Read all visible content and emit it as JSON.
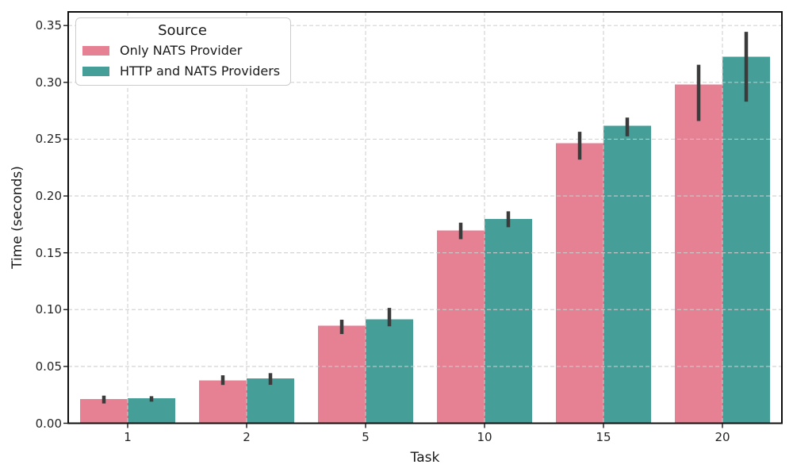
{
  "chart_data": {
    "type": "bar",
    "title": "",
    "xlabel": "Task",
    "ylabel": "Time (seconds)",
    "legend_title": "Source",
    "legend_position": "upper left",
    "categories": [
      "1",
      "2",
      "5",
      "10",
      "15",
      "20"
    ],
    "series": [
      {
        "name": "Only NATS Provider",
        "color": "#E68194",
        "values": [
          0.0213,
          0.0377,
          0.086,
          0.1697,
          0.2463,
          0.298
        ],
        "ci_low": [
          0.0174,
          0.0337,
          0.0785,
          0.162,
          0.232,
          0.266
        ],
        "ci_high": [
          0.0243,
          0.0422,
          0.0911,
          0.1765,
          0.2565,
          0.3155
        ]
      },
      {
        "name": "HTTP and NATS Providers",
        "color": "#459E97",
        "values": [
          0.022,
          0.0395,
          0.0913,
          0.1798,
          0.2618,
          0.3225
        ],
        "ci_low": [
          0.019,
          0.0338,
          0.0853,
          0.1725,
          0.2525,
          0.283
        ],
        "ci_high": [
          0.0238,
          0.0441,
          0.1015,
          0.1865,
          0.269,
          0.3445
        ]
      }
    ],
    "ylim": [
      0,
      0.362
    ],
    "yticks": [
      0.0,
      0.05,
      0.1,
      0.15,
      0.2,
      0.25,
      0.3,
      0.35
    ],
    "ytick_format_decimals": 2,
    "grid": {
      "on": true,
      "style": "dashed",
      "color": "#cccccc"
    },
    "error_bar_color": "#3b3b3b",
    "spine_color": "#0d0d0d"
  }
}
